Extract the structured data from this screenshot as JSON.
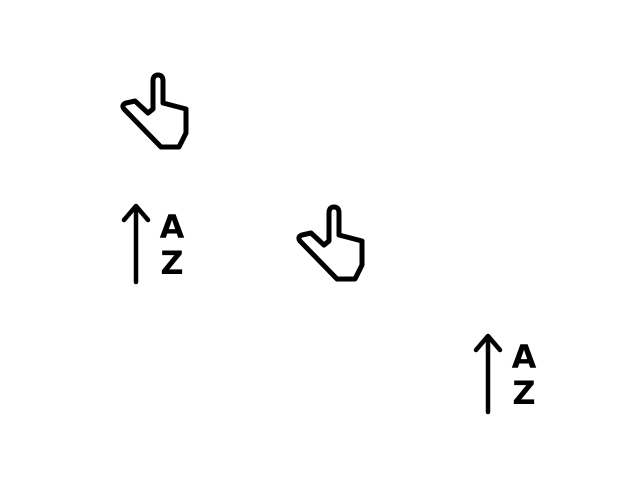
{
  "icons": [
    {
      "id": "hand-1",
      "type": "pointing-hand-icon"
    },
    {
      "id": "sort-1",
      "type": "sort-ascending-icon",
      "letters": [
        "A",
        "Z"
      ]
    },
    {
      "id": "hand-2",
      "type": "pointing-hand-icon"
    },
    {
      "id": "sort-2",
      "type": "sort-ascending-icon",
      "letters": [
        "A",
        "Z"
      ]
    }
  ],
  "colors": {
    "background": "#ffffff",
    "icon_stroke": "#000000"
  }
}
